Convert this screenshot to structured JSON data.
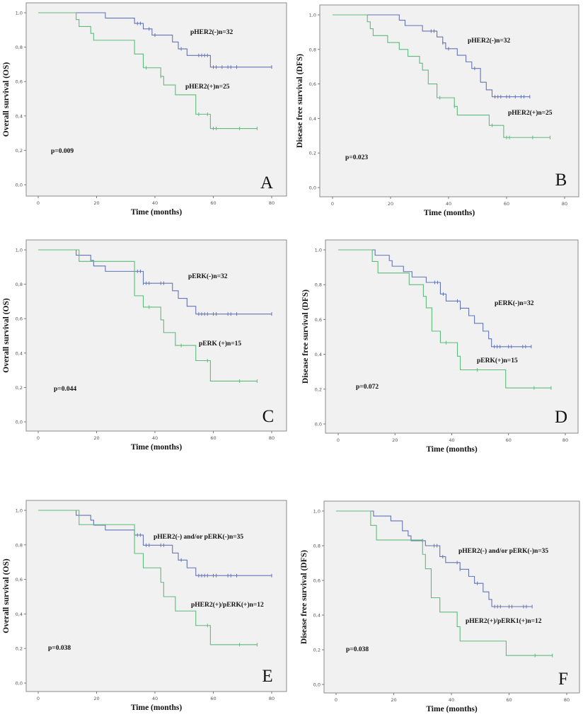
{
  "colors": {
    "negative": "#6474b4",
    "positive": "#5fba7d",
    "plot_background": "#f1f1f1",
    "frame": "#8a8a8a"
  },
  "chart_data": [
    {
      "type": "line",
      "subtype": "kaplan-meier",
      "panel_letter": "A",
      "xlabel": "Time (months)",
      "ylabel": "Overall survival (OS)",
      "xlim": [
        0,
        80
      ],
      "ylim": [
        0,
        1
      ],
      "x_ticks": [
        "0",
        "20",
        "40",
        "60",
        "80"
      ],
      "y_ticks": [
        "0,0",
        "0,2",
        "0,4",
        "0,6",
        "0,8",
        "1,0"
      ],
      "p_value": "p=0.009",
      "series": [
        {
          "name": "pHER2(-)n=32",
          "color_key": "negative",
          "end": 80,
          "steps": [
            [
              0,
              1
            ],
            [
              23,
              0.969
            ],
            [
              33,
              0.938
            ],
            [
              36,
              0.906
            ],
            [
              39,
              0.87
            ],
            [
              46,
              0.83
            ],
            [
              48,
              0.79
            ],
            [
              51,
              0.752
            ],
            [
              59,
              0.684
            ]
          ],
          "censored": [
            34,
            35,
            38,
            40,
            49,
            55,
            56,
            57,
            58,
            60,
            61,
            63,
            65,
            66,
            68,
            80
          ]
        },
        {
          "name": "pHER2(+)n=25",
          "color_key": "positive",
          "end": 75,
          "steps": [
            [
              0,
              1
            ],
            [
              13,
              0.96
            ],
            [
              14,
              0.92
            ],
            [
              18,
              0.88
            ],
            [
              19,
              0.84
            ],
            [
              33,
              0.76
            ],
            [
              36,
              0.68
            ],
            [
              42,
              0.63
            ],
            [
              43,
              0.58
            ],
            [
              47,
              0.523
            ],
            [
              54,
              0.41
            ],
            [
              59,
              0.327
            ]
          ],
          "censored": [
            37,
            42,
            55,
            58,
            60,
            61,
            69,
            75
          ]
        }
      ]
    },
    {
      "type": "line",
      "subtype": "kaplan-meier",
      "panel_letter": "B",
      "xlabel": "Time (months)",
      "ylabel": "Disease free survival (DFS)",
      "xlim": [
        0,
        80
      ],
      "ylim": [
        0,
        1
      ],
      "x_ticks": [
        "0",
        "20",
        "40",
        "60",
        "80"
      ],
      "y_ticks": [
        "0,0",
        "0,2",
        "0,4",
        "0,6",
        "0,8",
        "1,0"
      ],
      "p_value": "p=0.023",
      "series": [
        {
          "name": "pHER2(-)n=32",
          "color_key": "negative",
          "end": 68,
          "steps": [
            [
              0,
              1
            ],
            [
              23,
              0.969
            ],
            [
              25,
              0.938
            ],
            [
              31,
              0.906
            ],
            [
              36,
              0.872
            ],
            [
              38,
              0.838
            ],
            [
              39,
              0.804
            ],
            [
              43,
              0.766
            ],
            [
              46,
              0.728
            ],
            [
              48,
              0.69
            ],
            [
              51,
              0.61
            ],
            [
              53,
              0.566
            ],
            [
              55,
              0.526
            ]
          ],
          "censored": [
            34,
            35,
            38,
            40,
            49,
            56,
            57,
            58,
            60,
            61,
            63,
            65,
            66,
            68
          ]
        },
        {
          "name": "pHER2(+)n=25",
          "color_key": "positive",
          "end": 75,
          "steps": [
            [
              0,
              1
            ],
            [
              12,
              0.96
            ],
            [
              13,
              0.92
            ],
            [
              14,
              0.88
            ],
            [
              19,
              0.84
            ],
            [
              23,
              0.8
            ],
            [
              26,
              0.76
            ],
            [
              30,
              0.72
            ],
            [
              31,
              0.68
            ],
            [
              33,
              0.6
            ],
            [
              36,
              0.52
            ],
            [
              42,
              0.47
            ],
            [
              43,
              0.42
            ],
            [
              54,
              0.36
            ],
            [
              59,
              0.29
            ]
          ],
          "censored": [
            37,
            42,
            55,
            60,
            61,
            69,
            75
          ]
        }
      ]
    },
    {
      "type": "line",
      "subtype": "kaplan-meier",
      "panel_letter": "C",
      "xlabel": "Time (months)",
      "ylabel": "Overall survival (OS)",
      "xlim": [
        0,
        80
      ],
      "ylim": [
        0,
        1
      ],
      "x_ticks": [
        "0",
        "20",
        "40",
        "60",
        "80"
      ],
      "y_ticks": [
        "0,0",
        "0,2",
        "0,4",
        "0,6",
        "0,8",
        "1,0"
      ],
      "p_value": "p=0.044",
      "series": [
        {
          "name": "pERK(-)n=32",
          "color_key": "negative",
          "end": 80,
          "steps": [
            [
              0,
              1
            ],
            [
              13,
              0.969
            ],
            [
              18,
              0.938
            ],
            [
              19,
              0.906
            ],
            [
              23,
              0.875
            ],
            [
              36,
              0.806
            ],
            [
              46,
              0.762
            ],
            [
              48,
              0.718
            ],
            [
              51,
              0.672
            ],
            [
              54,
              0.627
            ]
          ],
          "censored": [
            34,
            35,
            36,
            37,
            38,
            42,
            43,
            55,
            56,
            57,
            58,
            60,
            61,
            65,
            66,
            68,
            80
          ]
        },
        {
          "name": "pERK (+)n=15",
          "color_key": "positive",
          "end": 75,
          "steps": [
            [
              0,
              1
            ],
            [
              14,
              0.933
            ],
            [
              33,
              0.733
            ],
            [
              36,
              0.667
            ],
            [
              42,
              0.593
            ],
            [
              43,
              0.519
            ],
            [
              47,
              0.444
            ],
            [
              54,
              0.356
            ],
            [
              59,
              0.237
            ]
          ],
          "censored": [
            38,
            49,
            58,
            69,
            75
          ]
        }
      ]
    },
    {
      "type": "line",
      "subtype": "kaplan-meier",
      "panel_letter": "D",
      "xlabel": "Time (months)",
      "ylabel": "Disease free survival (DFS)",
      "xlim": [
        0,
        80
      ],
      "ylim": [
        0,
        1
      ],
      "x_ticks": [
        "0",
        "20",
        "40",
        "60",
        "80"
      ],
      "y_ticks": [
        "0,0",
        "0,2",
        "0,4",
        "0,6",
        "0,8",
        "1,0"
      ],
      "p_value": "p=0.072",
      "series": [
        {
          "name": "pERK(-)n=32",
          "color_key": "negative",
          "end": 68,
          "steps": [
            [
              0,
              1
            ],
            [
              13,
              0.969
            ],
            [
              18,
              0.938
            ],
            [
              19,
              0.906
            ],
            [
              23,
              0.875
            ],
            [
              26,
              0.844
            ],
            [
              31,
              0.813
            ],
            [
              36,
              0.746
            ],
            [
              38,
              0.706
            ],
            [
              43,
              0.665
            ],
            [
              46,
              0.622
            ],
            [
              48,
              0.578
            ],
            [
              51,
              0.533
            ],
            [
              53,
              0.489
            ],
            [
              54,
              0.444
            ]
          ],
          "censored": [
            34,
            35,
            37,
            42,
            43,
            55,
            56,
            57,
            60,
            61,
            65,
            66,
            68
          ]
        },
        {
          "name": "pERK(+)n=15",
          "color_key": "positive",
          "end": 75,
          "steps": [
            [
              0,
              1
            ],
            [
              12,
              0.933
            ],
            [
              14,
              0.867
            ],
            [
              25,
              0.8
            ],
            [
              30,
              0.733
            ],
            [
              31,
              0.667
            ],
            [
              33,
              0.533
            ],
            [
              36,
              0.467
            ],
            [
              42,
              0.389
            ],
            [
              43,
              0.311
            ],
            [
              59,
              0.207
            ]
          ],
          "censored": [
            38,
            49,
            69,
            75
          ]
        }
      ]
    },
    {
      "type": "line",
      "subtype": "kaplan-meier",
      "panel_letter": "E",
      "xlabel": "Time (months)",
      "ylabel": "Overall survival (OS)",
      "xlim": [
        0,
        80
      ],
      "ylim": [
        0,
        1
      ],
      "x_ticks": [
        "0",
        "20",
        "40",
        "60",
        "80"
      ],
      "y_ticks": [
        "0,0",
        "0,2",
        "0,4",
        "0,6",
        "0,8",
        "1,0"
      ],
      "p_value": "p=0.038",
      "series": [
        {
          "name": "pHER2(-) and/or pERK(-)n=35",
          "color_key": "negative",
          "end": 80,
          "steps": [
            [
              0,
              1
            ],
            [
              13,
              0.971
            ],
            [
              18,
              0.943
            ],
            [
              19,
              0.914
            ],
            [
              23,
              0.886
            ],
            [
              33,
              0.857
            ],
            [
              36,
              0.798
            ],
            [
              46,
              0.753
            ],
            [
              48,
              0.712
            ],
            [
              51,
              0.667
            ],
            [
              54,
              0.622
            ]
          ],
          "censored": [
            34,
            35,
            37,
            38,
            42,
            43,
            49,
            55,
            56,
            57,
            58,
            60,
            61,
            65,
            66,
            68,
            80
          ]
        },
        {
          "name": "pHER2(+)/pERK(+)n=12",
          "color_key": "positive",
          "end": 75,
          "steps": [
            [
              0,
              1
            ],
            [
              14,
              0.917
            ],
            [
              33,
              0.75
            ],
            [
              36,
              0.667
            ],
            [
              42,
              0.583
            ],
            [
              43,
              0.5
            ],
            [
              47,
              0.417
            ],
            [
              54,
              0.333
            ],
            [
              59,
              0.222
            ]
          ],
          "censored": [
            58,
            69,
            75
          ]
        }
      ]
    },
    {
      "type": "line",
      "subtype": "kaplan-meier",
      "panel_letter": "F",
      "xlabel": "Time (months)",
      "ylabel": "Disease free survival (DFS)",
      "xlim": [
        0,
        80
      ],
      "ylim": [
        0,
        1
      ],
      "x_ticks": [
        "0",
        "20",
        "40",
        "60",
        "80"
      ],
      "y_ticks": [
        "0,0",
        "0,2",
        "0,4",
        "0,6",
        "0,8",
        "1,0"
      ],
      "p_value": "p=0.038",
      "series": [
        {
          "name": "pHER2(-) and/or pERK(-)n=35",
          "color_key": "negative",
          "end": 68,
          "steps": [
            [
              0,
              1
            ],
            [
              13,
              0.971
            ],
            [
              19,
              0.943
            ],
            [
              23,
              0.886
            ],
            [
              25,
              0.857
            ],
            [
              26,
              0.829
            ],
            [
              31,
              0.8
            ],
            [
              36,
              0.737
            ],
            [
              38,
              0.703
            ],
            [
              43,
              0.664
            ],
            [
              46,
              0.623
            ],
            [
              48,
              0.583
            ],
            [
              51,
              0.534
            ],
            [
              53,
              0.49
            ],
            [
              54,
              0.449
            ]
          ],
          "censored": [
            30,
            34,
            35,
            37,
            42,
            43,
            49,
            55,
            56,
            57,
            60,
            61,
            65,
            66,
            68
          ]
        },
        {
          "name": "pHER2(+)/pERK1(+)n=12",
          "color_key": "positive",
          "end": 75,
          "steps": [
            [
              0,
              1
            ],
            [
              12,
              0.917
            ],
            [
              14,
              0.833
            ],
            [
              30,
              0.75
            ],
            [
              31,
              0.667
            ],
            [
              33,
              0.5
            ],
            [
              36,
              0.417
            ],
            [
              42,
              0.333
            ],
            [
              43,
              0.25
            ],
            [
              59,
              0.167
            ]
          ],
          "censored": [
            69,
            75
          ]
        }
      ]
    }
  ]
}
